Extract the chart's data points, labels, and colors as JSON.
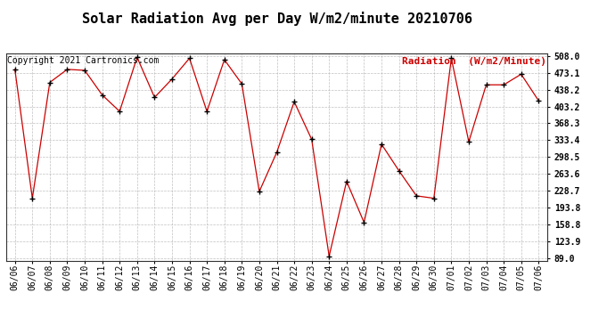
{
  "title": "Solar Radiation Avg per Day W/m2/minute 20210706",
  "copyright_text": "Copyright 2021 Cartronics.com",
  "legend_label": "Radiation  (W/m2/Minute)",
  "dates": [
    "06/06",
    "06/07",
    "06/08",
    "06/09",
    "06/10",
    "06/11",
    "06/12",
    "06/13",
    "06/14",
    "06/15",
    "06/16",
    "06/17",
    "06/18",
    "06/19",
    "06/20",
    "06/21",
    "06/22",
    "06/23",
    "06/24",
    "06/25",
    "06/26",
    "06/27",
    "06/28",
    "06/29",
    "06/30",
    "07/01",
    "07/02",
    "07/03",
    "07/04",
    "07/05",
    "07/06"
  ],
  "values": [
    480.0,
    213.0,
    453.0,
    480.0,
    478.0,
    427.0,
    393.0,
    505.0,
    422.0,
    460.0,
    503.0,
    393.0,
    500.0,
    450.0,
    227.0,
    308.0,
    413.0,
    335.0,
    93.0,
    248.0,
    163.0,
    325.0,
    270.0,
    218.0,
    213.0,
    503.0,
    330.0,
    448.0,
    448.0,
    470.0,
    415.0
  ],
  "yticks": [
    89.0,
    123.9,
    158.8,
    193.8,
    228.7,
    263.6,
    298.5,
    333.4,
    368.3,
    403.2,
    438.2,
    473.1,
    508.0
  ],
  "ymin": 84.0,
  "ymax": 513.0,
  "line_color": "#cc0000",
  "marker": "+",
  "marker_color": "#000000",
  "grid_color": "#b0b0b0",
  "bg_color": "#ffffff",
  "title_fontsize": 11,
  "tick_fontsize": 7,
  "copyright_color": "#000000",
  "legend_color": "#cc0000",
  "copyright_fontsize": 7,
  "legend_fontsize": 8
}
